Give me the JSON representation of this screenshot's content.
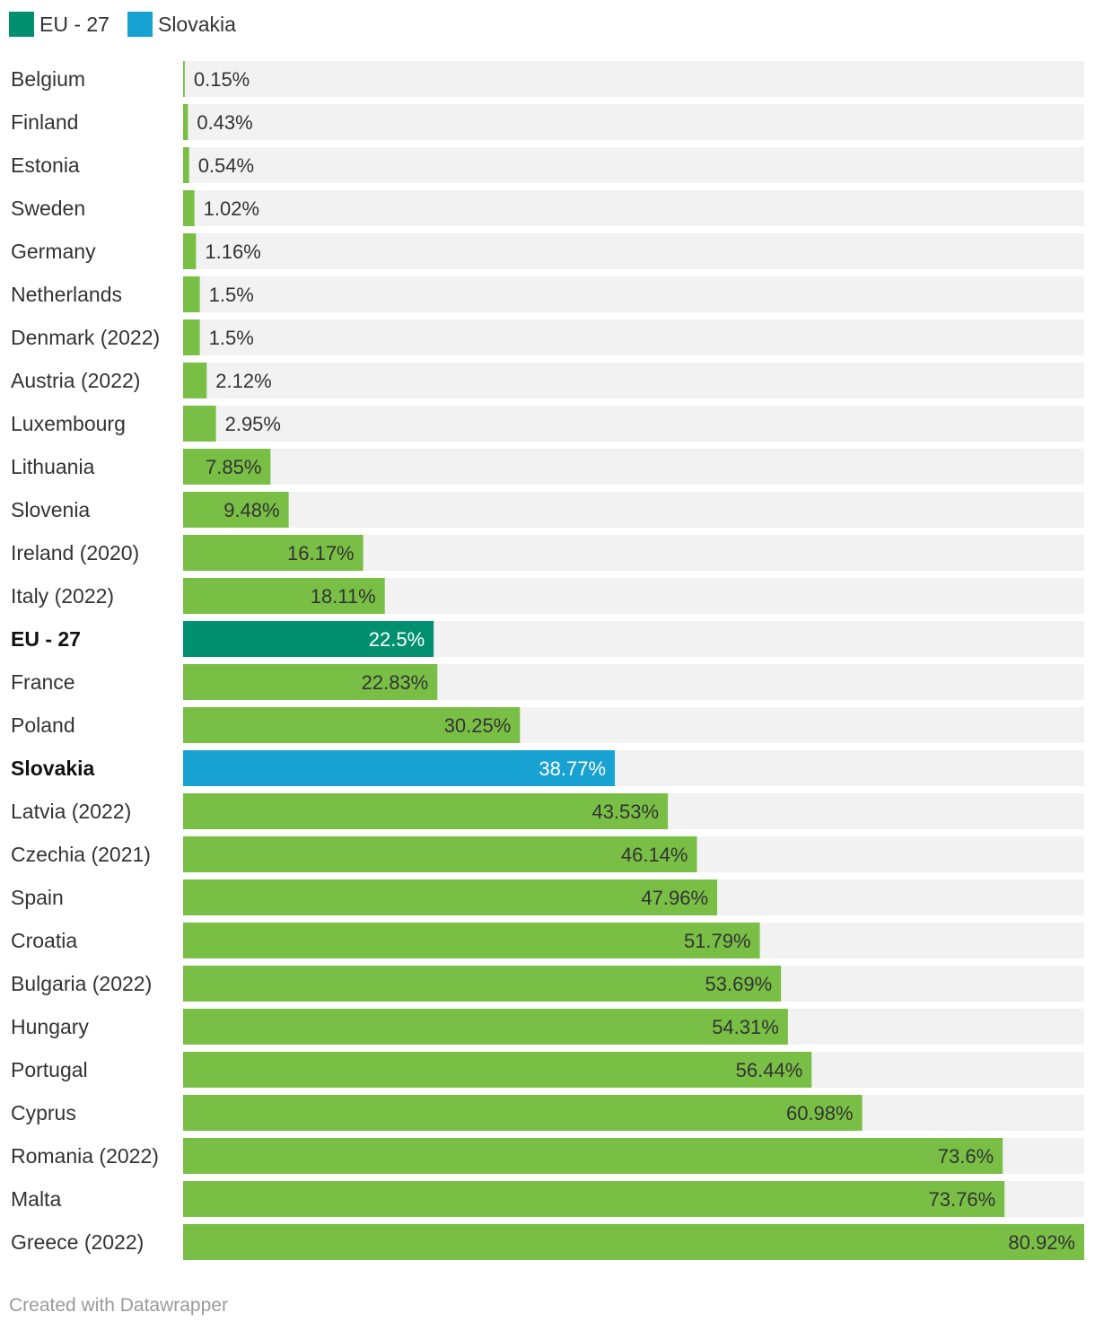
{
  "legend": [
    {
      "label": "EU - 27",
      "color": "#00906f"
    },
    {
      "label": "Slovakia",
      "color": "#17a2d1"
    }
  ],
  "colors": {
    "default_bar": "#79bf45",
    "track": "#f2f2f2",
    "eu": "#00906f",
    "slovakia": "#17a2d1"
  },
  "chart_data": {
    "type": "bar",
    "orientation": "horizontal",
    "title": "",
    "xlabel": "",
    "ylabel": "",
    "xlim": [
      0,
      80.92
    ],
    "unit": "%",
    "categories": [
      "Belgium",
      "Finland",
      "Estonia",
      "Sweden",
      "Germany",
      "Netherlands",
      "Denmark (2022)",
      "Austria (2022)",
      "Luxembourg",
      "Lithuania",
      "Slovenia",
      "Ireland (2020)",
      "Italy (2022)",
      "EU - 27",
      "France",
      "Poland",
      "Slovakia",
      "Latvia (2022)",
      "Czechia (2021)",
      "Spain",
      "Croatia",
      "Bulgaria (2022)",
      "Hungary",
      "Portugal",
      "Cyprus",
      "Romania (2022)",
      "Malta",
      "Greece (2022)"
    ],
    "values": [
      0.15,
      0.43,
      0.54,
      1.02,
      1.16,
      1.5,
      1.5,
      2.12,
      2.95,
      7.85,
      9.48,
      16.17,
      18.11,
      22.5,
      22.83,
      30.25,
      38.77,
      43.53,
      46.14,
      47.96,
      51.79,
      53.69,
      54.31,
      56.44,
      60.98,
      73.6,
      73.76,
      80.92
    ],
    "value_labels": [
      "0.15%",
      "0.43%",
      "0.54%",
      "1.02%",
      "1.16%",
      "1.5%",
      "1.5%",
      "2.12%",
      "2.95%",
      "7.85%",
      "9.48%",
      "16.17%",
      "18.11%",
      "22.5%",
      "22.83%",
      "30.25%",
      "38.77%",
      "43.53%",
      "46.14%",
      "47.96%",
      "51.79%",
      "53.69%",
      "54.31%",
      "56.44%",
      "60.98%",
      "73.6%",
      "73.76%",
      "80.92%"
    ],
    "highlights": {
      "EU - 27": "eu",
      "Slovakia": "slovakia"
    }
  },
  "footer": {
    "credit": "Created with Datawrapper"
  }
}
